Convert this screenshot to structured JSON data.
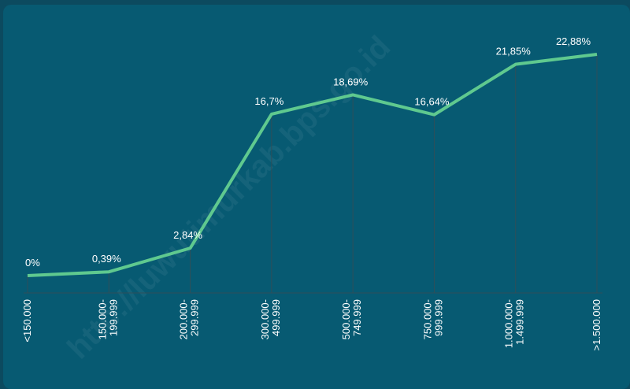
{
  "chart_data": {
    "type": "line",
    "categories": [
      "<150.000",
      "150.000-199.999",
      "200.000-299.999",
      "300.000-499.999",
      "500.000-749.999",
      "750.000-999.999",
      "1.000.000-1.499.999",
      ">1.500.000"
    ],
    "values": [
      0,
      0.39,
      2.84,
      16.7,
      18.69,
      16.64,
      21.85,
      22.88
    ],
    "value_labels": [
      "0%",
      "0,39%",
      "2,84%",
      "16,7%",
      "18,69%",
      "16,64%",
      "21,85%",
      "22,88%"
    ],
    "color": "#5fc98f",
    "watermark": "http://luwutimurkab.bps.go.id"
  }
}
